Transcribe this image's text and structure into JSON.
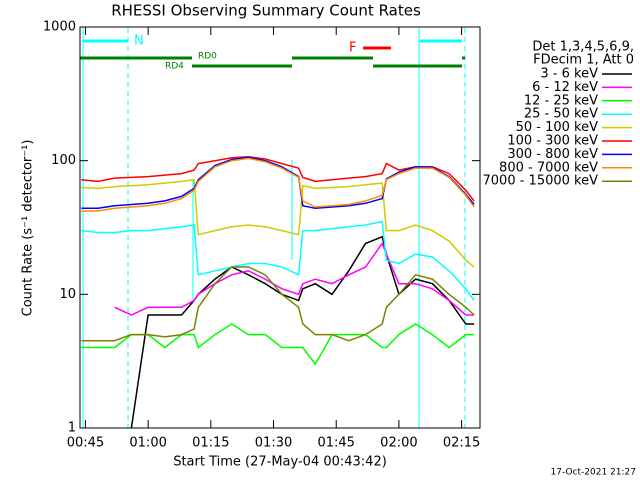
{
  "chart_data": {
    "type": "line",
    "title": "RHESSI Observing Summary Count Rates",
    "xlabel": "Start Time (27-May-04 00:43:42)",
    "ylabel": "Count Rate (s⁻¹ detector⁻¹)",
    "legend_header": [
      "Det 1,3,4,5,6,9,",
      "FDecim 1, Att 0"
    ],
    "footer": "17-Oct-2021 21:27",
    "annotations": [
      "N",
      "F",
      "RD0",
      "RD4"
    ],
    "log_y": true,
    "xlim": [
      "00:43:42",
      "02:19:24"
    ],
    "xticks": [
      "00:45",
      "01:00",
      "01:15",
      "01:30",
      "01:45",
      "02:00",
      "02:15"
    ],
    "ylim": [
      1,
      1000
    ],
    "yticks": [
      1,
      10,
      100,
      1000
    ],
    "x": [
      "00:44",
      "00:48",
      "00:52",
      "00:56",
      "01:00",
      "01:04",
      "01:08",
      "01:11",
      "01:12",
      "01:16",
      "01:20",
      "01:24",
      "01:28",
      "01:32",
      "01:36",
      "01:37",
      "01:40",
      "01:44",
      "01:48",
      "01:52",
      "01:56",
      "01:57",
      "02:00",
      "02:04",
      "02:08",
      "02:12",
      "02:16",
      "02:18"
    ],
    "series": [
      {
        "name": "3 - 6 keV",
        "color": "#000000",
        "values": [
          null,
          null,
          null,
          1,
          7,
          7,
          7,
          9,
          10,
          13,
          16,
          14,
          12,
          10,
          9,
          11,
          12,
          10,
          15,
          24,
          27,
          20,
          10,
          13,
          12,
          9,
          6,
          6
        ]
      },
      {
        "name": "6 - 12 keV",
        "color": "#ff00ff",
        "values": [
          null,
          null,
          8,
          7,
          8,
          8,
          8,
          9,
          10,
          12,
          14,
          15,
          13,
          11,
          10,
          12,
          13,
          12,
          14,
          16,
          24,
          20,
          12,
          12,
          11,
          9,
          7,
          7
        ]
      },
      {
        "name": "12 - 25 keV",
        "color": "#00ff00",
        "values": [
          4,
          4,
          4,
          5,
          5,
          4,
          5,
          5,
          4,
          5,
          6,
          5,
          5,
          4,
          4,
          4,
          3,
          5,
          5,
          5,
          4,
          4,
          5,
          6,
          5,
          4,
          5,
          5
        ]
      },
      {
        "name": "25 - 50 keV",
        "color": "#00ffff",
        "values": [
          30,
          29,
          29,
          30,
          30,
          31,
          32,
          33,
          14,
          15,
          16,
          17,
          17,
          16,
          14,
          30,
          30,
          31,
          32,
          33,
          35,
          18,
          17,
          20,
          19,
          15,
          11,
          9
        ]
      },
      {
        "name": "50 - 100 keV",
        "color": "#cccc00",
        "values": [
          63,
          62,
          64,
          65,
          66,
          68,
          70,
          72,
          28,
          30,
          32,
          33,
          32,
          30,
          28,
          65,
          62,
          63,
          64,
          66,
          68,
          30,
          30,
          33,
          30,
          25,
          18,
          16
        ]
      },
      {
        "name": "100 - 300 keV",
        "color": "#ff0000",
        "values": [
          72,
          70,
          74,
          75,
          76,
          78,
          80,
          85,
          95,
          100,
          105,
          107,
          103,
          95,
          88,
          75,
          70,
          72,
          74,
          76,
          80,
          95,
          85,
          90,
          90,
          80,
          60,
          50
        ]
      },
      {
        "name": "300 - 800 keV",
        "color": "#0000ff",
        "values": [
          44,
          44,
          46,
          47,
          48,
          50,
          54,
          62,
          72,
          92,
          102,
          106,
          100,
          90,
          76,
          46,
          44,
          45,
          46,
          48,
          52,
          73,
          82,
          90,
          89,
          76,
          56,
          47
        ]
      },
      {
        "name": "800 - 7000 keV",
        "color": "#ff8c00",
        "values": [
          42,
          42,
          44,
          45,
          46,
          48,
          52,
          60,
          70,
          90,
          100,
          104,
          98,
          88,
          75,
          50,
          45,
          46,
          47,
          50,
          55,
          72,
          80,
          88,
          88,
          75,
          55,
          45
        ]
      },
      {
        "name": "7000 - 15000 keV",
        "color": "#808000",
        "values": [
          4.5,
          4.5,
          4.5,
          5,
          5,
          4.8,
          5,
          5.5,
          8,
          12,
          16,
          16,
          14,
          10,
          8,
          6,
          5,
          5,
          4.5,
          5,
          6,
          8,
          10,
          14,
          13,
          10,
          8,
          7
        ]
      }
    ]
  }
}
